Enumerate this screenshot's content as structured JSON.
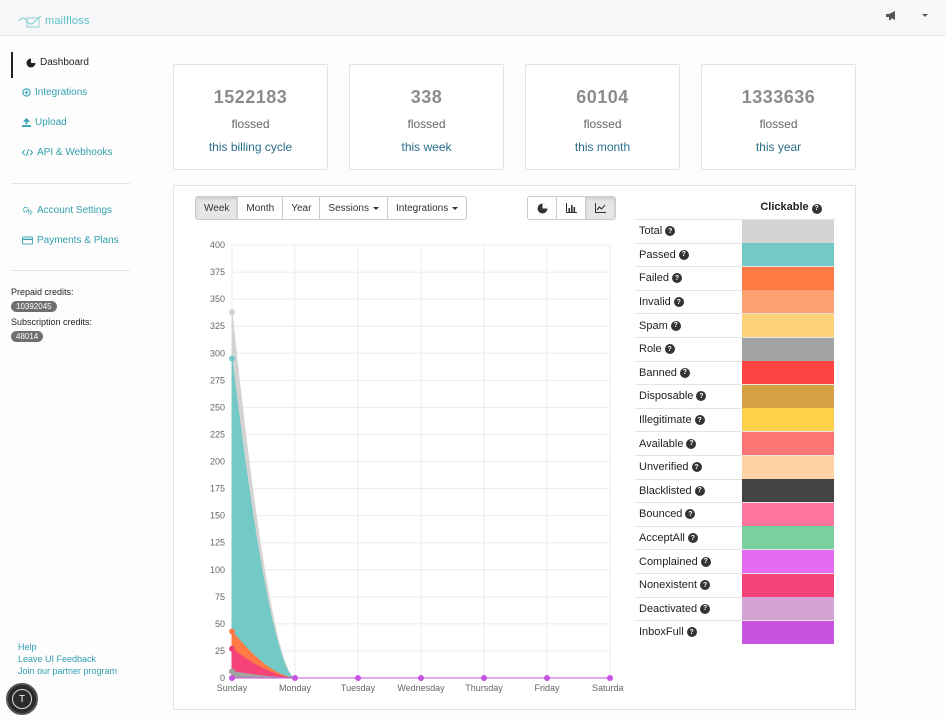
{
  "header": {
    "logo_text": "mailfloss"
  },
  "sidebar": {
    "items": [
      {
        "label": "Dashboard",
        "icon": "dashboard-icon"
      },
      {
        "label": "Integrations",
        "icon": "plug-icon"
      },
      {
        "label": "Upload",
        "icon": "upload-icon"
      },
      {
        "label": "API & Webhooks",
        "icon": "code-icon"
      },
      {
        "label": "Account Settings",
        "icon": "gears-icon"
      },
      {
        "label": "Payments & Plans",
        "icon": "credit-card-icon"
      }
    ],
    "prepaid_label": "Prepaid credits:",
    "prepaid_value": "10392045",
    "subscription_label": "Subscription credits:",
    "subscription_value": "48014",
    "footer_links": [
      "Help",
      "Leave UI Feedback",
      "Join our partner program"
    ],
    "avatar_letter": "T"
  },
  "stats": [
    {
      "value": "1522183",
      "sub": "flossed",
      "link": "this billing cycle"
    },
    {
      "value": "338",
      "sub": "flossed",
      "link": "this week"
    },
    {
      "value": "60104",
      "sub": "flossed",
      "link": "this month"
    },
    {
      "value": "1333636",
      "sub": "flossed",
      "link": "this year"
    }
  ],
  "toolbar": {
    "week": "Week",
    "month": "Month",
    "year": "Year",
    "sessions": "Sessions",
    "integrations": "Integrations"
  },
  "legend": {
    "header": "Clickable",
    "items": [
      {
        "label": "Total",
        "color": "#d3d3d3"
      },
      {
        "label": "Passed",
        "color": "#72c9c5"
      },
      {
        "label": "Failed",
        "color": "#ff7a45"
      },
      {
        "label": "Invalid",
        "color": "#ffa073"
      },
      {
        "label": "Spam",
        "color": "#ffd27a"
      },
      {
        "label": "Role",
        "color": "#a3a3a3"
      },
      {
        "label": "Banned",
        "color": "#ff4444"
      },
      {
        "label": "Disposable",
        "color": "#d4a143"
      },
      {
        "label": "Illegitimate",
        "color": "#ffd049"
      },
      {
        "label": "Available",
        "color": "#ff7575"
      },
      {
        "label": "Unverified",
        "color": "#ffd3a3"
      },
      {
        "label": "Blacklisted",
        "color": "#444444"
      },
      {
        "label": "Bounced",
        "color": "#ff759e"
      },
      {
        "label": "AcceptAll",
        "color": "#79d1a0"
      },
      {
        "label": "Complained",
        "color": "#e46cf0"
      },
      {
        "label": "Nonexistent",
        "color": "#f5437a"
      },
      {
        "label": "Deactivated",
        "color": "#d4a3d4"
      },
      {
        "label": "InboxFull",
        "color": "#c753e0"
      }
    ]
  },
  "chart_data": {
    "type": "area",
    "categories": [
      "Sunday",
      "Monday",
      "Tuesday",
      "Wednesday",
      "Thursday",
      "Friday",
      "Saturday"
    ],
    "ylim": [
      0,
      400
    ],
    "yticks": [
      0,
      25,
      50,
      75,
      100,
      125,
      150,
      175,
      200,
      225,
      250,
      275,
      300,
      325,
      350,
      375,
      400
    ],
    "series": [
      {
        "name": "Total",
        "color": "#d3d3d3",
        "values": [
          338,
          0,
          0,
          0,
          0,
          0,
          0
        ]
      },
      {
        "name": "Passed",
        "color": "#72c9c5",
        "values": [
          295,
          0,
          0,
          0,
          0,
          0,
          0
        ]
      },
      {
        "name": "Failed",
        "color": "#ff7a45",
        "values": [
          43,
          0,
          0,
          0,
          0,
          0,
          0
        ]
      },
      {
        "name": "Nonexistent",
        "color": "#f5437a",
        "values": [
          27,
          0,
          0,
          0,
          0,
          0,
          0
        ]
      },
      {
        "name": "Role",
        "color": "#a3a3a3",
        "values": [
          6,
          0,
          0,
          0,
          0,
          0,
          0
        ]
      },
      {
        "name": "InboxFull",
        "color": "#c753e0",
        "values": [
          0,
          0,
          0,
          0,
          0,
          0,
          0
        ]
      }
    ]
  }
}
